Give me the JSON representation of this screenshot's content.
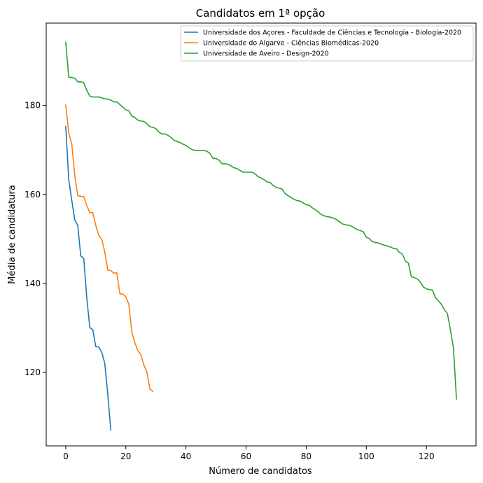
{
  "chart_data": {
    "type": "line",
    "title": "Candidatos em 1ª opção",
    "xlabel": "Número de candidatos",
    "ylabel": "Média de candidatura",
    "xlim": [
      -6.5,
      136.5
    ],
    "ylim": [
      103.5,
      198.5
    ],
    "xticks": [
      0,
      20,
      40,
      60,
      80,
      100,
      120
    ],
    "yticks": [
      120,
      140,
      160,
      180
    ],
    "grid": false,
    "legend_position": "top-right",
    "series": [
      {
        "name": "Universidade dos Açores - Faculdade de Ciências e Tecnologia - Biologia-2020",
        "color": "#1f77b4",
        "x": [
          0,
          1,
          2,
          3,
          4,
          5,
          6,
          7,
          8,
          9,
          10,
          11,
          12,
          13,
          14,
          15
        ],
        "y": [
          175.3,
          163.3,
          158.7,
          154.3,
          153.0,
          146.2,
          145.6,
          136.8,
          130.1,
          129.6,
          125.8,
          125.7,
          124.5,
          122.0,
          115.0,
          107.0
        ]
      },
      {
        "name": "Universidade do Algarve - Ciências Biomédicas-2020",
        "color": "#ff7f0e",
        "x": [
          0,
          1,
          2,
          3,
          4,
          5,
          6,
          7,
          8,
          9,
          10,
          11,
          12,
          13,
          14,
          15,
          16,
          17,
          18,
          19,
          20,
          21,
          22,
          23,
          24,
          25,
          26,
          27,
          28,
          29
        ],
        "y": [
          180.1,
          173.8,
          171.4,
          164.3,
          159.7,
          159.6,
          159.5,
          157.5,
          155.9,
          155.9,
          153.0,
          150.8,
          149.9,
          147.0,
          143.0,
          142.9,
          142.3,
          142.4,
          137.7,
          137.6,
          137.0,
          135.3,
          129.0,
          126.7,
          124.9,
          124.0,
          121.7,
          120.1,
          116.3,
          115.7
        ]
      },
      {
        "name": "Universidade de Aveiro - Design-2020",
        "color": "#2ca02c",
        "x": [
          0,
          1,
          2,
          3,
          4,
          5,
          6,
          7,
          8,
          9,
          10,
          11,
          12,
          13,
          14,
          15,
          16,
          17,
          18,
          19,
          20,
          21,
          22,
          23,
          24,
          25,
          26,
          27,
          28,
          29,
          30,
          31,
          32,
          33,
          34,
          35,
          36,
          37,
          38,
          39,
          40,
          41,
          42,
          43,
          44,
          45,
          46,
          47,
          48,
          49,
          50,
          51,
          52,
          53,
          54,
          55,
          56,
          57,
          58,
          59,
          60,
          61,
          62,
          63,
          64,
          65,
          66,
          67,
          68,
          69,
          70,
          71,
          72,
          73,
          74,
          75,
          76,
          77,
          78,
          79,
          80,
          81,
          82,
          83,
          84,
          85,
          86,
          87,
          88,
          89,
          90,
          91,
          92,
          93,
          94,
          95,
          96,
          97,
          98,
          99,
          100,
          101,
          102,
          103,
          104,
          105,
          106,
          107,
          108,
          109,
          110,
          111,
          112,
          113,
          114,
          115,
          116,
          117,
          118,
          119,
          120,
          121,
          122,
          123,
          124,
          125,
          126,
          127,
          128,
          129,
          130
        ],
        "y": [
          194.2,
          186.3,
          186.3,
          186.1,
          185.3,
          185.3,
          185.1,
          183.4,
          182.1,
          181.9,
          181.9,
          181.9,
          181.7,
          181.5,
          181.4,
          181.2,
          180.8,
          180.8,
          180.2,
          179.6,
          179.0,
          178.8,
          177.6,
          177.3,
          176.7,
          176.5,
          176.4,
          175.9,
          175.2,
          175.1,
          174.8,
          174.0,
          173.6,
          173.6,
          173.3,
          172.8,
          172.2,
          171.9,
          171.7,
          171.3,
          171.0,
          170.5,
          170.1,
          169.9,
          169.9,
          169.9,
          169.9,
          169.7,
          169.2,
          168.1,
          168.1,
          167.7,
          166.9,
          166.9,
          166.8,
          166.4,
          166.0,
          165.8,
          165.4,
          165.0,
          165.0,
          165.0,
          165.0,
          164.6,
          164.0,
          163.7,
          163.3,
          162.8,
          162.7,
          162.0,
          161.6,
          161.4,
          161.2,
          160.2,
          159.7,
          159.3,
          158.9,
          158.6,
          158.5,
          158.1,
          157.7,
          157.6,
          157.0,
          156.6,
          156.1,
          155.5,
          155.2,
          155.0,
          154.9,
          154.7,
          154.4,
          153.9,
          153.4,
          153.2,
          153.1,
          152.9,
          152.5,
          152.1,
          151.9,
          151.6,
          150.4,
          150.1,
          149.4,
          149.2,
          149.1,
          148.8,
          148.6,
          148.4,
          148.2,
          147.9,
          147.8,
          147.0,
          146.6,
          145.0,
          144.6,
          141.5,
          141.3,
          141.0,
          140.3,
          139.2,
          138.8,
          138.6,
          138.5,
          136.8,
          136.1,
          135.3,
          134.1,
          133.2,
          129.5,
          125.5,
          114.0
        ]
      }
    ]
  }
}
